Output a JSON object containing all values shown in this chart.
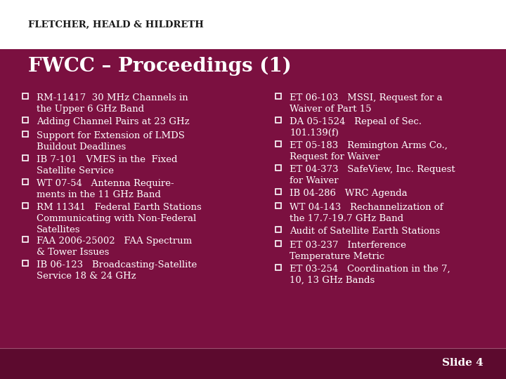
{
  "bg_color": "#7B1040",
  "header_bg": "#ffffff",
  "footer_bg": "#5C0A2E",
  "title": "FWCC – Proceedings (1)",
  "title_color": "#ffffff",
  "title_fontsize": 20,
  "firm_name": "Fletcher, Heald & Hildreth",
  "firm_name_color": "#1a1a1a",
  "slide_label": "Slide 4",
  "slide_label_color": "#ffffff",
  "text_color": "#ffffff",
  "bullet_fontsize": 9.5,
  "left_bullets": [
    "RM-11417  30 MHz Channels in\nthe Upper 6 GHz Band",
    "Adding Channel Pairs at 23 GHz",
    "Support for Extension of LMDS\nBuildout Deadlines",
    "IB 7-101   VMES in the  Fixed\nSatellite Service",
    "WT 07-54   Antenna Require-\nments in the 11 GHz Band",
    "RM 11341   Federal Earth Stations\nCommunicating with Non-Federal\nSatellites",
    "FAA 2006-25002   FAA Spectrum\n& Tower Issues",
    "IB 06-123   Broadcasting-Satellite\nService 18 & 24 GHz"
  ],
  "right_bullets": [
    "ET 06-103   MSSI, Request for a\nWaiver of Part 15",
    "DA 05-1524   Repeal of Sec.\n101.139(f)",
    "ET 05-183   Remington Arms Co.,\nRequest for Waiver",
    "ET 04-373   SafeView, Inc. Request\nfor Waiver",
    "IB 04-286   WRC Agenda",
    "WT 04-143   Rechannelization of\nthe 17.7-19.7 GHz Band",
    "Audit of Satellite Earth Stations",
    "ET 03-237   Interference\nTemperature Metric",
    "ET 03-254   Coordination in the 7,\n10, 13 GHz Bands"
  ]
}
